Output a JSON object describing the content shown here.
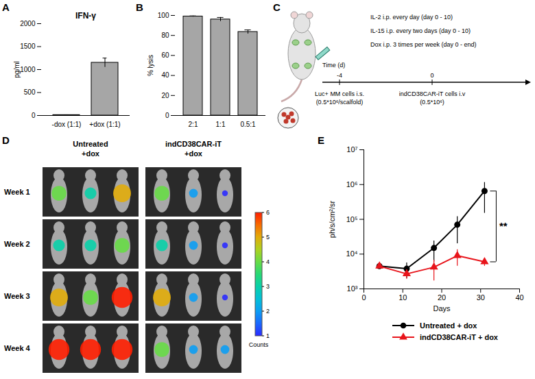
{
  "panel_labels": [
    "A",
    "B",
    "C",
    "D",
    "E"
  ],
  "chart_data": [
    {
      "type": "bar",
      "title": "IFN-γ",
      "categories": [
        "-dox (1:1)",
        "+dox (1:1)"
      ],
      "values": [
        10,
        1150
      ],
      "errors": [
        5,
        100
      ],
      "color": "#a6a6a6",
      "y_label": "pg/ml",
      "ylim": [
        0,
        2000
      ],
      "yticks": [
        0,
        500,
        1000,
        1500,
        2000
      ]
    },
    {
      "type": "bar",
      "categories": [
        "2:1",
        "1:1",
        "0.5:1"
      ],
      "values": [
        99,
        96,
        83.5
      ],
      "errors": [
        0.5,
        2,
        2
      ],
      "color": "#a6a6a6",
      "y_label": "% lysis",
      "ylim": [
        0,
        100
      ],
      "yticks": [
        0,
        20,
        40,
        60,
        80,
        100
      ]
    },
    {
      "type": "line",
      "x_label": "Days",
      "y_label": "ph/s/cm²/sr",
      "log": "y",
      "x": [
        4,
        11,
        18,
        24,
        31
      ],
      "xlim": [
        0,
        40
      ],
      "xticks": [
        0,
        10,
        20,
        30,
        40
      ],
      "ylim": [
        1000,
        10000000
      ],
      "yticks": [
        {
          "value": 1000,
          "label": "10³"
        },
        {
          "value": 10000,
          "label": "10⁴"
        },
        {
          "value": 100000,
          "label": "10⁵"
        },
        {
          "value": 1000000,
          "label": "10⁶"
        },
        {
          "value": 10000000,
          "label": "10⁷"
        }
      ],
      "legend": "bottom",
      "annotations": [
        {
          "text": "**"
        }
      ],
      "series": [
        {
          "name": "Untreated + dox",
          "color": "#000000",
          "marker": "circle",
          "values": [
            4500,
            3800,
            15000,
            70000,
            650000
          ],
          "errors": [
            500,
            1800,
            9000,
            50000,
            500000
          ]
        },
        {
          "name": "indCD38CAR-iT + dox",
          "color": "#e8141b",
          "marker": "triangle",
          "values": [
            4500,
            2700,
            4200,
            9000,
            6000
          ],
          "errors": [
            500,
            800,
            2500,
            4500,
            1500
          ]
        }
      ]
    }
  ],
  "schematic": {
    "treatments": [
      "IL-2 i.p. every day (day 0 - 10)",
      "IL-15 i.p. every two days (day 0 - 10)",
      "Dox i.p. 3 times per week (day 0 - end)"
    ],
    "timeline": {
      "label": "Time (d)",
      "ticks": [
        -4,
        0
      ]
    },
    "events": [
      {
        "day": -4,
        "lines": [
          "Luc+ MM cells i.s.",
          "(0.5*10⁶/scalfold)"
        ]
      },
      {
        "day": 0,
        "lines": [
          "indCD38CAR-iT cells i.v",
          "(0.5*10⁶)"
        ]
      }
    ]
  },
  "imaging": {
    "columns": [
      "Untreated +dox",
      "indCD38CAR-iT +dox"
    ],
    "rows": [
      "Week 1",
      "Week 2",
      "Week 3",
      "Week 4"
    ],
    "signal": [
      [
        [
          4,
          3,
          5
        ],
        [
          4,
          2,
          1
        ]
      ],
      [
        [
          3,
          3,
          4
        ],
        [
          3,
          2,
          1
        ]
      ],
      [
        [
          5,
          4,
          6
        ],
        [
          5,
          2,
          1
        ]
      ],
      [
        [
          6,
          6,
          6
        ],
        [
          4,
          2,
          2
        ]
      ]
    ],
    "colorbar": {
      "label": "Counts",
      "range": [
        1,
        6
      ],
      "ticks": [
        1,
        2,
        3,
        4,
        5,
        6
      ]
    }
  }
}
